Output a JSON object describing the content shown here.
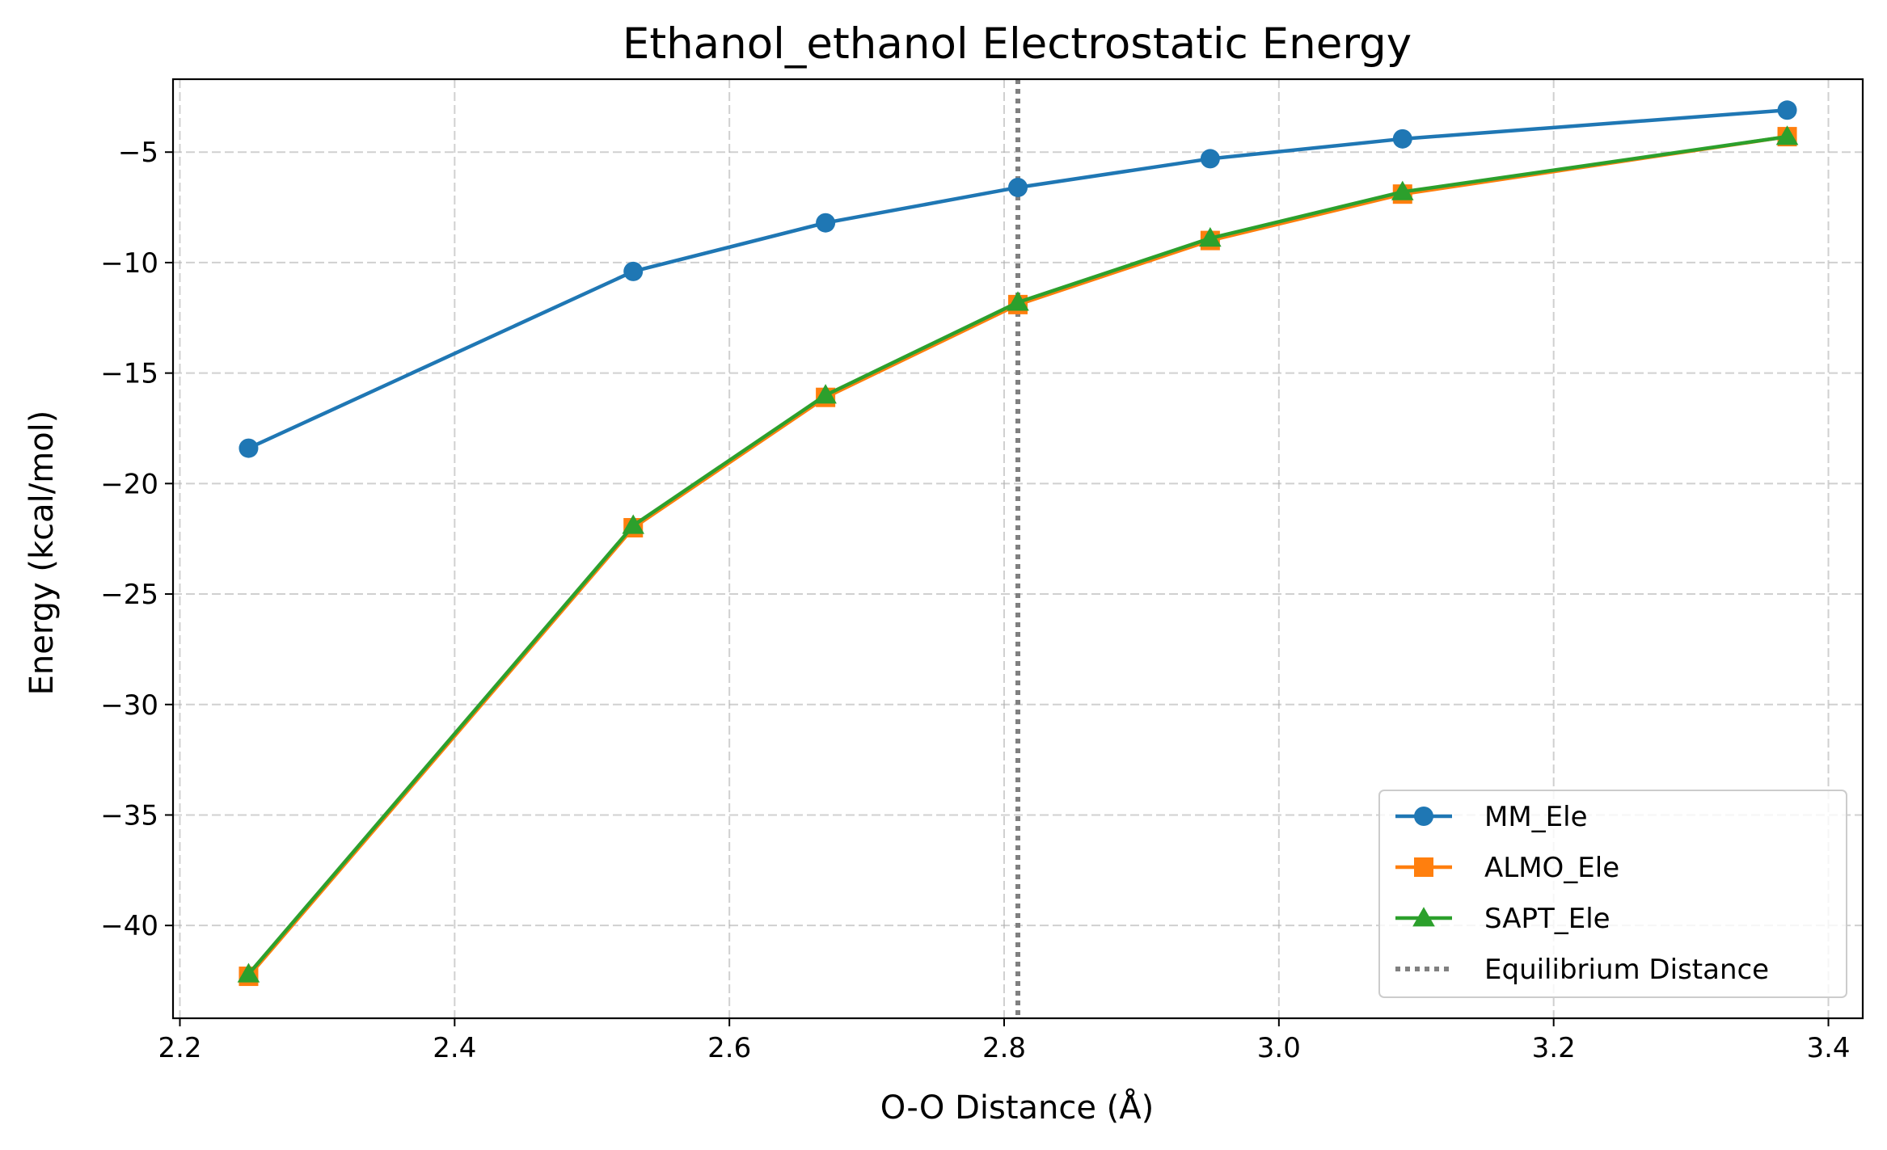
{
  "chart_data": {
    "type": "line",
    "title": "Ethanol_ethanol Electrostatic Energy",
    "xlabel": "O-O Distance (Å)",
    "ylabel": "Energy (kcal/mol)",
    "xlim": [
      2.195,
      3.425
    ],
    "ylim": [
      -44.2,
      -1.7
    ],
    "xticks": [
      2.2,
      2.4,
      2.6,
      2.8,
      3.0,
      3.2,
      3.4
    ],
    "xtick_labels": [
      "2.2",
      "2.4",
      "2.6",
      "2.8",
      "3.0",
      "3.2",
      "3.4"
    ],
    "yticks": [
      -5,
      -10,
      -15,
      -20,
      -25,
      -30,
      -35,
      -40
    ],
    "ytick_labels": [
      "−5",
      "−10",
      "−15",
      "−20",
      "−25",
      "−30",
      "−35",
      "−40"
    ],
    "grid": true,
    "legend_position": "lower-right",
    "x": [
      2.25,
      2.53,
      2.67,
      2.81,
      2.95,
      3.09,
      3.37
    ],
    "series": [
      {
        "name": "MM_Ele",
        "color": "#1f77b4",
        "marker": "circle",
        "values": [
          -18.4,
          -10.4,
          -8.2,
          -6.6,
          -5.3,
          -4.4,
          -3.1
        ]
      },
      {
        "name": "ALMO_Ele",
        "color": "#ff7f0e",
        "marker": "square",
        "values": [
          -42.3,
          -22.0,
          -16.1,
          -11.9,
          -9.0,
          -6.9,
          -4.3
        ]
      },
      {
        "name": "SAPT_Ele",
        "color": "#2ca02c",
        "marker": "triangle",
        "values": [
          -42.2,
          -21.9,
          -16.0,
          -11.8,
          -8.9,
          -6.8,
          -4.3
        ]
      }
    ],
    "reference_line": {
      "name": "Equilibrium Distance",
      "x": 2.81,
      "color": "#808080",
      "style": "dotted"
    }
  }
}
